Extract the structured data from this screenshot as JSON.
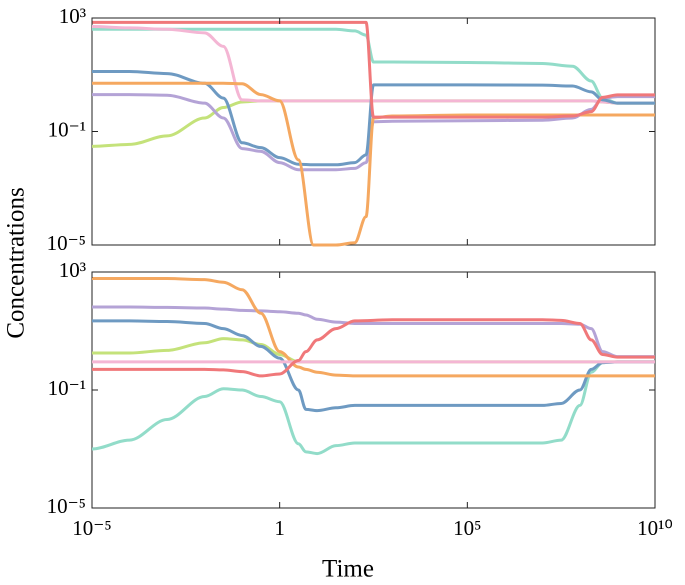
{
  "chart_data": [
    {
      "type": "line",
      "xscale": "log",
      "yscale": "log",
      "ylabel": "Concentrations",
      "show_xtick_labels": false,
      "x": [
        1e-05,
        0.0001,
        0.001,
        0.01,
        0.0316,
        0.1,
        0.316,
        1,
        3.16,
        7.94,
        31.6,
        100,
        200,
        316,
        1000,
        100000,
        10000000,
        63000000,
        200000000,
        400000000,
        1000000000,
        10000000000
      ],
      "xlim": [
        1e-05,
        10000000000
      ],
      "xticks": [
        1e-05,
        1,
        100000,
        10000000000
      ],
      "ylim": [
        1e-05,
        1000
      ],
      "yticks": [
        {
          "value": 1000,
          "label": "10³"
        },
        {
          "value": 0.1,
          "label": "10⁻¹"
        },
        {
          "value": 1e-05,
          "label": "10⁻⁵"
        }
      ],
      "series": [
        {
          "color": "#c4e27a",
          "values": [
            0.03,
            0.035,
            0.07,
            0.3,
            0.7,
            1.1,
            1.2,
            1.2,
            1.2,
            1.2,
            1.2,
            1.2,
            1.2,
            1.2,
            1.2,
            1.2,
            1.2,
            1.2,
            1.2,
            1.1,
            1,
            1
          ]
        },
        {
          "color": "#92dcc9",
          "values": [
            400,
            400,
            400,
            400,
            400,
            400,
            400,
            400,
            400,
            400,
            400,
            350,
            250,
            28,
            28,
            27,
            25,
            20,
            6,
            1.5,
            1,
            1
          ]
        },
        {
          "color": "#f4b6d4",
          "values": [
            500,
            450,
            400,
            300,
            100,
            1.3,
            1.2,
            1.2,
            1.2,
            1.2,
            1.2,
            1.2,
            1.2,
            1.2,
            1.2,
            1.2,
            1.2,
            1.2,
            1.2,
            1.1,
            1,
            1
          ]
        },
        {
          "color": "#b4a3d6",
          "values": [
            2,
            2,
            1.9,
            1,
            0.3,
            0.025,
            0.02,
            0.008,
            0.0045,
            0.0045,
            0.0045,
            0.005,
            0.008,
            0.22,
            0.23,
            0.24,
            0.25,
            0.3,
            0.6,
            1.5,
            1.7,
            1.7
          ]
        },
        {
          "color": "#6e9ac2",
          "values": [
            13,
            13,
            11,
            5,
            1.5,
            0.04,
            0.027,
            0.012,
            0.007,
            0.0067,
            0.0067,
            0.008,
            0.015,
            4.4,
            4.4,
            4.4,
            4.3,
            4,
            2.5,
            1.3,
            1,
            1
          ]
        },
        {
          "color": "#f5a860",
          "values": [
            5,
            5,
            5,
            5,
            5,
            4.8,
            2,
            1.2,
            0.01,
            1e-05,
            1e-05,
            1.2e-05,
            0.0001,
            0.3,
            0.35,
            0.38,
            0.38,
            0.38,
            0.38,
            0.38,
            0.38,
            0.38
          ]
        },
        {
          "color": "#f0787a",
          "values": [
            700,
            700,
            700,
            700,
            700,
            700,
            700,
            700,
            700,
            700,
            700,
            700,
            700,
            0.32,
            0.32,
            0.32,
            0.32,
            0.35,
            0.5,
            1.6,
            1.95,
            1.95
          ]
        }
      ]
    },
    {
      "type": "line",
      "xscale": "log",
      "yscale": "log",
      "xlabel": "Time",
      "show_xtick_labels": true,
      "x": [
        1e-05,
        0.0001,
        0.001,
        0.01,
        0.0316,
        0.1,
        0.316,
        1,
        3.16,
        5.01,
        10,
        31.6,
        100,
        1000,
        100000,
        10000000,
        31600000,
        100000000,
        200000000,
        400000000,
        1000000000,
        10000000000
      ],
      "xlim": [
        1e-05,
        10000000000
      ],
      "xticks": [
        {
          "value": 1e-05,
          "label": "10⁻⁵"
        },
        1,
        {
          "value": 100000,
          "label": "10⁵"
        },
        {
          "value": 10000000000,
          "label": "10¹⁰"
        }
      ],
      "ylim": [
        1e-05,
        1000
      ],
      "yticks": [
        {
          "value": 1000,
          "label": "10³"
        },
        {
          "value": 0.1,
          "label": "10⁻¹"
        },
        {
          "value": 1e-05,
          "label": "10⁻⁵"
        }
      ],
      "series": [
        {
          "color": "#92dcc9",
          "values": [
            0.001,
            0.002,
            0.01,
            0.06,
            0.11,
            0.1,
            0.06,
            0.04,
            0.0015,
            0.0008,
            0.0007,
            0.0013,
            0.0016,
            0.0016,
            0.0016,
            0.0016,
            0.002,
            0.03,
            0.4,
            0.85,
            0.9,
            0.9
          ]
        },
        {
          "color": "#c4e27a",
          "values": [
            1.8,
            1.8,
            2.2,
            4,
            5.5,
            5,
            3.5,
            1.6,
            0.9,
            0.9,
            0.9,
            0.9,
            0.9,
            0.9,
            0.9,
            0.9,
            0.9,
            0.9,
            0.9,
            0.9,
            0.9,
            0.9
          ]
        },
        {
          "color": "#6e9ac2",
          "values": [
            22,
            22,
            21,
            18,
            12,
            7,
            3,
            1.2,
            0.1,
            0.022,
            0.02,
            0.025,
            0.03,
            0.03,
            0.03,
            0.03,
            0.035,
            0.1,
            0.5,
            0.85,
            0.9,
            0.9
          ]
        },
        {
          "color": "#b4a3d6",
          "values": [
            65,
            65,
            63,
            60,
            55,
            50,
            48,
            45,
            40,
            35,
            25,
            20,
            18,
            18,
            18,
            18,
            18,
            17,
            12,
            2,
            1.35,
            1.35
          ]
        },
        {
          "color": "#f5a860",
          "values": [
            600,
            600,
            600,
            550,
            450,
            250,
            40,
            2,
            0.6,
            0.5,
            0.4,
            0.32,
            0.3,
            0.3,
            0.3,
            0.3,
            0.3,
            0.3,
            0.3,
            0.3,
            0.3,
            0.3
          ]
        },
        {
          "color": "#f4b6d4",
          "values": [
            0.9,
            0.9,
            0.9,
            0.9,
            0.9,
            0.9,
            0.9,
            0.9,
            0.9,
            0.9,
            0.9,
            0.9,
            0.9,
            0.9,
            0.9,
            0.9,
            0.9,
            0.9,
            0.9,
            0.9,
            0.9,
            0.9
          ]
        },
        {
          "color": "#f0787a",
          "values": [
            0.5,
            0.5,
            0.5,
            0.5,
            0.48,
            0.42,
            0.3,
            0.35,
            1,
            2,
            5,
            12,
            22,
            24,
            24,
            24,
            23,
            18,
            5,
            1.6,
            1.3,
            1.3
          ]
        }
      ]
    }
  ]
}
